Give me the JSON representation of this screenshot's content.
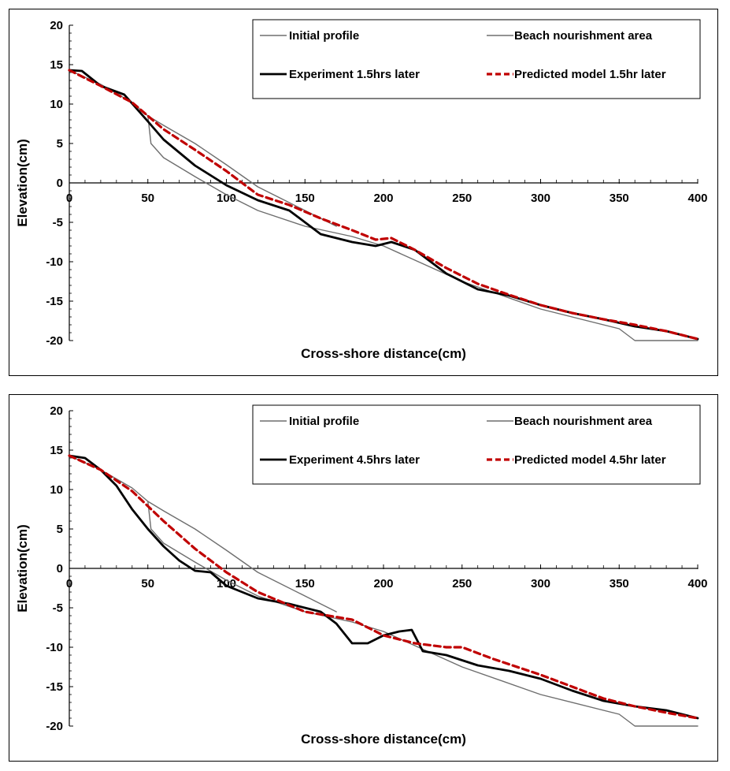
{
  "colors": {
    "initial": "#6e6e6e",
    "nourishment": "#6e6e6e",
    "experiment": "#000000",
    "model": "#c00000"
  },
  "chart_data": [
    {
      "type": "line",
      "xlabel": "Cross-shore distance(cm)",
      "ylabel": "Elevation(cm)",
      "xlim": [
        0,
        400
      ],
      "ylim": [
        -20,
        20
      ],
      "x_ticks": [
        0,
        50,
        100,
        150,
        200,
        250,
        300,
        350,
        400
      ],
      "y_ticks": [
        20,
        15,
        10,
        5,
        0,
        -5,
        -10,
        -15,
        -20
      ],
      "grid": false,
      "legend_position": "top-right",
      "series": [
        {
          "name": "Initial profile",
          "style": "thin-gray",
          "x": [
            0,
            20,
            40,
            50,
            52,
            60,
            80,
            100,
            120,
            150,
            180,
            200,
            250,
            300,
            350,
            360,
            400
          ],
          "y": [
            14.3,
            12.5,
            10.2,
            8.5,
            5,
            3.2,
            0.8,
            -1.5,
            -3.5,
            -5.5,
            -6.8,
            -8,
            -12.5,
            -16,
            -18.5,
            -20,
            -20
          ]
        },
        {
          "name": "Beach nourishment area",
          "style": "thin-gray",
          "x": [
            50,
            60,
            80,
            100,
            120,
            150,
            170
          ],
          "y": [
            8.5,
            7.3,
            5,
            2.3,
            -0.5,
            -3.5,
            -5.5
          ]
        },
        {
          "name": "Experiment 1.5hrs later",
          "style": "thick-black",
          "x": [
            0,
            8,
            20,
            35,
            50,
            60,
            80,
            100,
            120,
            140,
            160,
            180,
            195,
            205,
            220,
            240,
            260,
            280,
            300,
            320,
            340,
            360,
            380,
            400
          ],
          "y": [
            14.3,
            14.2,
            12.3,
            11.2,
            7.8,
            5.5,
            2.2,
            -0.3,
            -2.2,
            -3.5,
            -6.5,
            -7.5,
            -8,
            -7.5,
            -8.5,
            -11.5,
            -13.5,
            -14.3,
            -15.5,
            -16.5,
            -17.3,
            -18.2,
            -18.8,
            -19.8
          ]
        },
        {
          "name": "Predicted model 1.5hr later",
          "style": "dashed-red",
          "x": [
            0,
            20,
            40,
            60,
            80,
            100,
            120,
            140,
            160,
            180,
            195,
            205,
            220,
            240,
            260,
            280,
            300,
            320,
            340,
            360,
            380,
            400
          ],
          "y": [
            14.3,
            12.3,
            10.2,
            6.8,
            4.2,
            1.5,
            -1.5,
            -2.8,
            -4.5,
            -6,
            -7.2,
            -7,
            -8.5,
            -10.8,
            -12.8,
            -14.2,
            -15.5,
            -16.5,
            -17.3,
            -18,
            -18.8,
            -19.8
          ]
        }
      ]
    },
    {
      "type": "line",
      "xlabel": "Cross-shore distance(cm)",
      "ylabel": "Elevation(cm)",
      "xlim": [
        0,
        400
      ],
      "ylim": [
        -20,
        20
      ],
      "x_ticks": [
        0,
        50,
        100,
        150,
        200,
        250,
        300,
        350,
        400
      ],
      "y_ticks": [
        20,
        15,
        10,
        5,
        0,
        -5,
        -10,
        -15,
        -20
      ],
      "grid": false,
      "legend_position": "top-right",
      "series": [
        {
          "name": "Initial profile",
          "style": "thin-gray",
          "x": [
            0,
            20,
            40,
            50,
            52,
            60,
            80,
            100,
            120,
            150,
            180,
            200,
            250,
            300,
            350,
            360,
            400
          ],
          "y": [
            14.3,
            12.5,
            10.2,
            8.5,
            5,
            3.2,
            0.8,
            -1.5,
            -3.5,
            -5.5,
            -6.8,
            -8,
            -12.5,
            -16,
            -18.5,
            -20,
            -20
          ]
        },
        {
          "name": "Beach nourishment area",
          "style": "thin-gray",
          "x": [
            50,
            60,
            80,
            100,
            120,
            150,
            170
          ],
          "y": [
            8.5,
            7.3,
            5,
            2.3,
            -0.5,
            -3.5,
            -5.5
          ]
        },
        {
          "name": "Experiment 4.5hrs later",
          "style": "thick-black",
          "x": [
            0,
            10,
            20,
            30,
            40,
            50,
            60,
            70,
            80,
            90,
            100,
            120,
            140,
            160,
            170,
            180,
            190,
            200,
            210,
            218,
            225,
            240,
            260,
            280,
            300,
            320,
            340,
            360,
            380,
            400
          ],
          "y": [
            14.3,
            14,
            12.5,
            10.5,
            7.5,
            5,
            2.8,
            1,
            -0.3,
            -0.5,
            -2.2,
            -3.8,
            -4.5,
            -5.5,
            -7,
            -9.5,
            -9.5,
            -8.5,
            -8,
            -7.8,
            -10.5,
            -11,
            -12.3,
            -13,
            -14,
            -15.5,
            -16.8,
            -17.5,
            -18,
            -19
          ]
        },
        {
          "name": "Predicted model 4.5hr later",
          "style": "dashed-red",
          "x": [
            0,
            20,
            40,
            60,
            80,
            100,
            120,
            150,
            180,
            200,
            220,
            240,
            250,
            270,
            300,
            320,
            340,
            360,
            380,
            400
          ],
          "y": [
            14.3,
            12.5,
            9.8,
            6,
            2.5,
            -0.5,
            -3,
            -5.5,
            -6.5,
            -8.5,
            -9.5,
            -10,
            -10,
            -11.5,
            -13.5,
            -15,
            -16.5,
            -17.5,
            -18.3,
            -19
          ]
        }
      ]
    }
  ]
}
